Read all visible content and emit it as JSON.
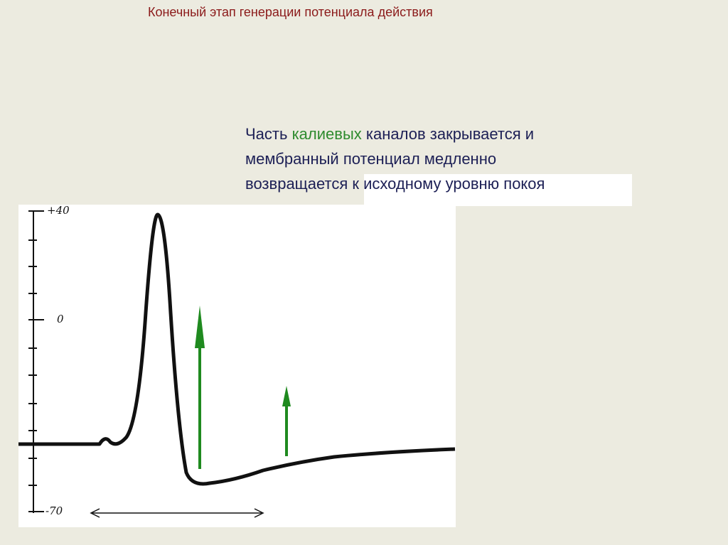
{
  "header": {
    "title": "Конечный этап генерации потенциала действия"
  },
  "body": {
    "lines": [
      [
        "Часть ",
        "калиевых",
        " каналов закрывается и"
      ],
      [
        "мембранный потенциал медленно"
      ],
      [
        "возвращается к исходному уровню покоя"
      ]
    ]
  },
  "figure": {
    "axis_labels": [
      "+40",
      "0",
      "-70"
    ]
  }
}
